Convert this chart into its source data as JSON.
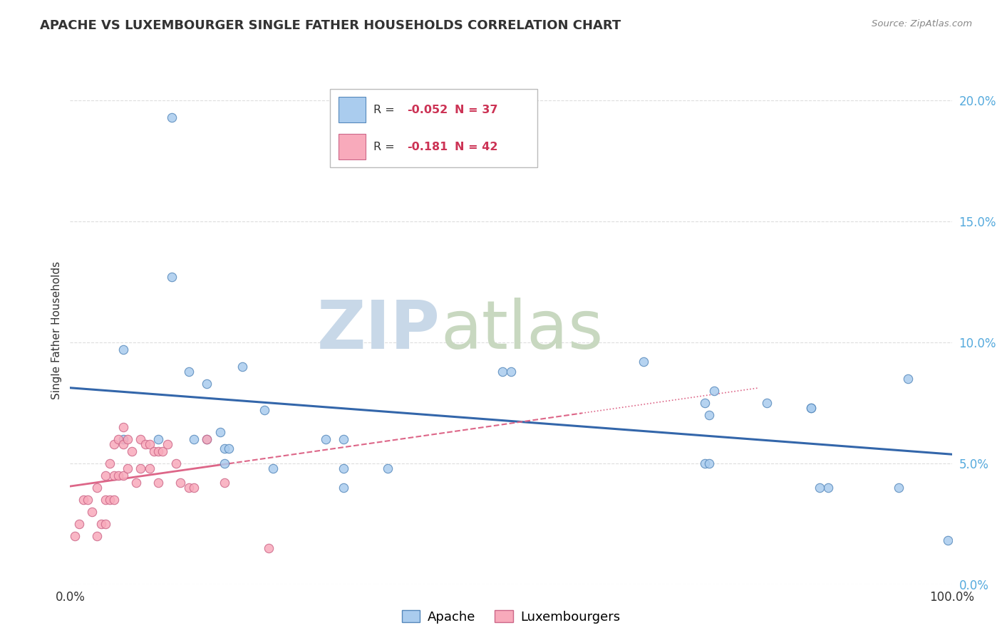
{
  "title": "APACHE VS LUXEMBOURGER SINGLE FATHER HOUSEHOLDS CORRELATION CHART",
  "source": "Source: ZipAtlas.com",
  "ylabel": "Single Father Households",
  "xlim": [
    0,
    1.0
  ],
  "ylim": [
    0,
    0.21
  ],
  "ytick_vals": [
    0.0,
    0.05,
    0.1,
    0.15,
    0.2
  ],
  "ytick_labels": [
    "0.0%",
    "5.0%",
    "10.0%",
    "15.0%",
    "20.0%"
  ],
  "xtick_vals": [
    0.0,
    1.0
  ],
  "xtick_labels": [
    "0.0%",
    "100.0%"
  ],
  "apache_R": "-0.052",
  "apache_N": "37",
  "luxembourger_R": "-0.181",
  "luxembourger_N": "42",
  "apache_color": "#aaccee",
  "apache_edge_color": "#5588bb",
  "apache_line_color": "#3366aa",
  "luxembourger_color": "#f8aabb",
  "luxembourger_edge_color": "#cc6688",
  "luxembourger_line_color": "#dd6688",
  "apache_x": [
    0.115,
    0.115,
    0.06,
    0.135,
    0.155,
    0.195,
    0.22,
    0.29,
    0.31,
    0.36,
    0.49,
    0.5,
    0.65,
    0.72,
    0.725,
    0.73,
    0.79,
    0.84,
    0.84,
    0.86,
    0.06,
    0.1,
    0.14,
    0.155,
    0.17,
    0.175,
    0.18,
    0.23,
    0.31,
    0.72,
    0.725,
    0.85,
    0.94,
    0.95,
    0.995,
    0.175,
    0.31
  ],
  "apache_y": [
    0.193,
    0.127,
    0.097,
    0.088,
    0.083,
    0.09,
    0.072,
    0.06,
    0.06,
    0.048,
    0.088,
    0.088,
    0.092,
    0.075,
    0.07,
    0.08,
    0.075,
    0.073,
    0.073,
    0.04,
    0.06,
    0.06,
    0.06,
    0.06,
    0.063,
    0.056,
    0.056,
    0.048,
    0.048,
    0.05,
    0.05,
    0.04,
    0.04,
    0.085,
    0.018,
    0.05,
    0.04
  ],
  "luxembourger_x": [
    0.005,
    0.01,
    0.015,
    0.02,
    0.025,
    0.03,
    0.03,
    0.035,
    0.04,
    0.04,
    0.04,
    0.045,
    0.045,
    0.05,
    0.05,
    0.05,
    0.055,
    0.055,
    0.06,
    0.06,
    0.06,
    0.065,
    0.065,
    0.07,
    0.075,
    0.08,
    0.08,
    0.085,
    0.09,
    0.09,
    0.095,
    0.1,
    0.1,
    0.105,
    0.11,
    0.12,
    0.125,
    0.135,
    0.14,
    0.155,
    0.175,
    0.225
  ],
  "luxembourger_y": [
    0.02,
    0.025,
    0.035,
    0.035,
    0.03,
    0.04,
    0.02,
    0.025,
    0.045,
    0.035,
    0.025,
    0.05,
    0.035,
    0.058,
    0.045,
    0.035,
    0.06,
    0.045,
    0.065,
    0.058,
    0.045,
    0.06,
    0.048,
    0.055,
    0.042,
    0.06,
    0.048,
    0.058,
    0.058,
    0.048,
    0.055,
    0.055,
    0.042,
    0.055,
    0.058,
    0.05,
    0.042,
    0.04,
    0.04,
    0.06,
    0.042,
    0.015
  ],
  "watermark_zip_color": "#c8d8e8",
  "watermark_atlas_color": "#c8d8c0",
  "grid_color": "#dddddd",
  "tick_color": "#55aadd",
  "title_color": "#333333",
  "source_color": "#888888"
}
